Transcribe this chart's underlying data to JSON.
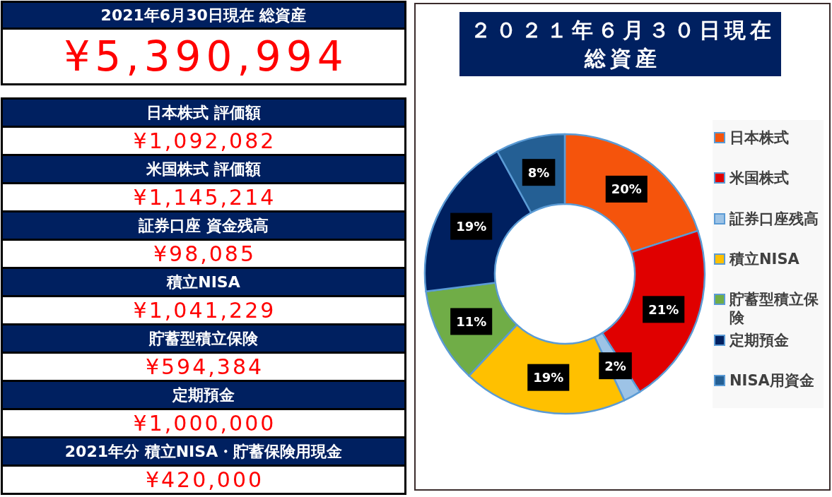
{
  "chart_data": [
    {
      "type": "other",
      "title": "2021年6月30日現在 総資産",
      "subtitle": "¥5,390,994",
      "annotations": [
        "日本株式 評価額",
        "¥1,092,082",
        "米国株式 評価額",
        "¥1,145,214",
        "証券口座 資金残高",
        "¥98,085",
        "積立NISA",
        "¥1,041,229",
        "貯蓄型積立保険",
        "¥594,384",
        "定期預金",
        "¥1,000,000",
        "2021年分 積立NISA・貯蓄保険用現金",
        "¥420,000"
      ]
    },
    {
      "type": "donut",
      "title": "２０２１年６月３０日現在総資産",
      "categories": [
        "日本株式",
        "米国株式",
        "証券口座残高",
        "積立NISA",
        "貯蓄型積立保険",
        "定期預金",
        "NISA用資金"
      ],
      "values": [
        20,
        21,
        2,
        19,
        11,
        19,
        8
      ],
      "value_labels": [
        "20%",
        "21%",
        "2%",
        "19%",
        "11%",
        "19%",
        "8%"
      ],
      "colors": [
        "#f5540c",
        "#e00000",
        "#9dc3e6",
        "#ffc000",
        "#70ad47",
        "#002060",
        "#245f94"
      ],
      "legend": "right"
    }
  ]
}
